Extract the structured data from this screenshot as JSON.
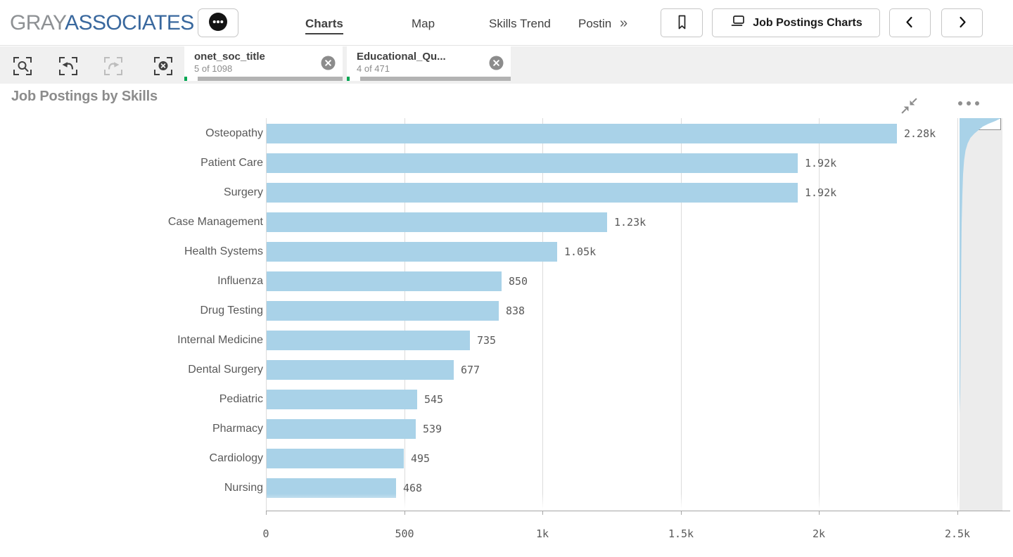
{
  "header": {
    "logo_part1": "GRAY",
    "logo_part2": "ASSOCIATES",
    "nav": [
      {
        "label": "Charts",
        "active": true
      },
      {
        "label": "Map",
        "active": false
      },
      {
        "label": "Skills Trend",
        "active": false
      },
      {
        "label": "Postin",
        "active": false
      }
    ],
    "nav_overflow": "»",
    "sheet_button_label": "Job Postings Charts"
  },
  "selections_bar": {
    "filters": [
      {
        "field": "onet_soc_title",
        "status": "5 of 1098"
      },
      {
        "field": "Educational_Qu...",
        "status": "4 of 471"
      }
    ]
  },
  "chart": {
    "title": "Job Postings by Skills"
  },
  "chart_data": {
    "type": "bar",
    "orientation": "horizontal",
    "title": "Job Postings by Skills",
    "categories": [
      "Osteopathy",
      "Patient Care",
      "Surgery",
      "Case Management",
      "Health Systems",
      "Influenza",
      "Drug Testing",
      "Internal Medicine",
      "Dental Surgery",
      "Pediatric",
      "Pharmacy",
      "Cardiology",
      "Nursing"
    ],
    "values": [
      2280,
      1920,
      1920,
      1230,
      1050,
      850,
      838,
      735,
      677,
      545,
      539,
      495,
      468
    ],
    "value_labels": [
      "2.28k",
      "1.92k",
      "1.92k",
      "1.23k",
      "1.05k",
      "850",
      "838",
      "735",
      "677",
      "545",
      "539",
      "495",
      "468"
    ],
    "xlabel": "",
    "ylabel": "",
    "x_ticks": [
      {
        "value": 0,
        "label": "0"
      },
      {
        "value": 500,
        "label": "500"
      },
      {
        "value": 1000,
        "label": "1k"
      },
      {
        "value": 1500,
        "label": "1.5k"
      },
      {
        "value": 2000,
        "label": "2k"
      },
      {
        "value": 2500,
        "label": "2.5k"
      }
    ],
    "xlim": [
      0,
      2500
    ],
    "grid": true,
    "legend": false,
    "bar_color": "#a9d2e8",
    "minimap": {
      "shown": true,
      "viewport_at_top": true
    }
  },
  "colors": {
    "bar_blue": "#a9d2e8",
    "selection_green": "#00a653",
    "excluded_gray": "#b3b3b3",
    "logo_gray": "#8e9194",
    "logo_blue": "#39689e",
    "selections_bar_bg": "#f0f0f0"
  }
}
